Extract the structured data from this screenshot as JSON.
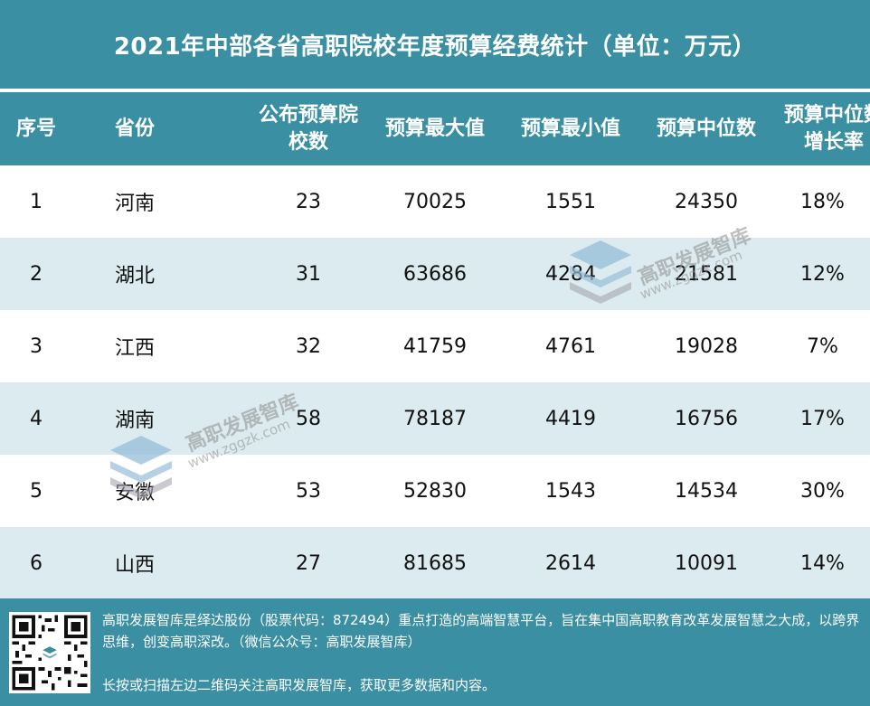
{
  "title": "2021年中部各省高职院校年度预算经费统计（单位：万元）",
  "columns": [
    "序号",
    "省份",
    "公布预算院校数",
    "预算最大值",
    "预算最小值",
    "预算中位数",
    "预算中位数增长率"
  ],
  "rows": [
    {
      "idx": "1",
      "province": "河南",
      "schools": "23",
      "max": "70025",
      "min": "1551",
      "median": "24350",
      "growth": "18%"
    },
    {
      "idx": "2",
      "province": "湖北",
      "schools": "31",
      "max": "63686",
      "min": "4284",
      "median": "21581",
      "growth": "12%"
    },
    {
      "idx": "3",
      "province": "江西",
      "schools": "32",
      "max": "41759",
      "min": "4761",
      "median": "19028",
      "growth": "7%"
    },
    {
      "idx": "4",
      "province": "湖南",
      "schools": "58",
      "max": "78187",
      "min": "4419",
      "median": "16756",
      "growth": "17%"
    },
    {
      "idx": "5",
      "province": "安徽",
      "schools": "53",
      "max": "52830",
      "min": "1543",
      "median": "14534",
      "growth": "30%"
    },
    {
      "idx": "6",
      "province": "山西",
      "schools": "27",
      "max": "81685",
      "min": "2614",
      "median": "10091",
      "growth": "14%"
    }
  ],
  "watermark": {
    "name": "高职发展智库",
    "url": "www.zggzk.com"
  },
  "footer": {
    "intro": "高职发展智库是绎达股份（股票代码：872494）重点打造的高端智慧平台，旨在集中国高职教育改革发展智慧之大成，以跨界思维，创变高职深改。（微信公众号：高职发展智库）",
    "cta": "长按或扫描左边二维码关注高职发展智库，获取更多数据和内容。"
  },
  "colors": {
    "header": "#3a8fa3",
    "stripe": "#dcebef"
  },
  "icons": {
    "qr": "qr-code-icon",
    "logo": "stacked-layers-logo-icon"
  }
}
